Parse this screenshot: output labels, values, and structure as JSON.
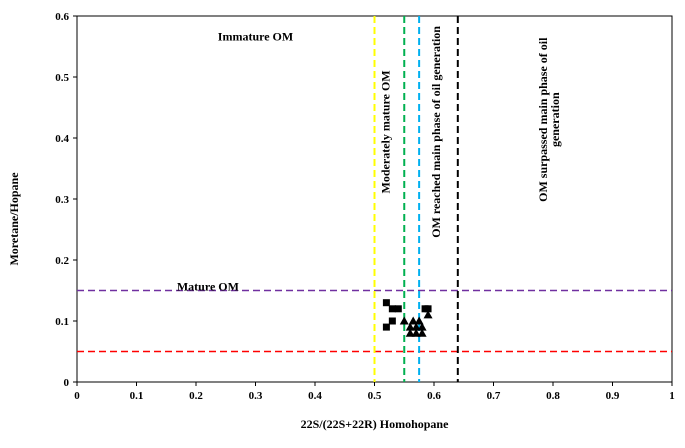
{
  "chart_data": {
    "type": "scatter",
    "title": "",
    "xlabel": "22S/(22S+22R) Homohopane",
    "ylabel": "Moretane/Hopane",
    "xlim": [
      0,
      1
    ],
    "ylim": [
      0,
      0.6
    ],
    "xticks": [
      "0",
      "0.1",
      "0.2",
      "0.3",
      "0.4",
      "0.5",
      "0.6",
      "0.7",
      "0.8",
      "0.9",
      "1"
    ],
    "yticks": [
      "0",
      "0.1",
      "0.2",
      "0.3",
      "0.4",
      "0.5",
      "0.6"
    ],
    "grid": false,
    "series": [
      {
        "marker": "square",
        "color": "#000000",
        "points": [
          [
            0.52,
            0.13
          ],
          [
            0.53,
            0.12
          ],
          [
            0.54,
            0.12
          ],
          [
            0.53,
            0.1
          ],
          [
            0.52,
            0.09
          ],
          [
            0.59,
            0.12
          ],
          [
            0.585,
            0.12
          ]
        ]
      },
      {
        "marker": "triangle",
        "color": "#000000",
        "points": [
          [
            0.55,
            0.1
          ],
          [
            0.56,
            0.09
          ],
          [
            0.565,
            0.1
          ],
          [
            0.57,
            0.09
          ],
          [
            0.575,
            0.1
          ],
          [
            0.58,
            0.09
          ],
          [
            0.56,
            0.08
          ],
          [
            0.57,
            0.08
          ],
          [
            0.58,
            0.08
          ],
          [
            0.59,
            0.11
          ]
        ]
      }
    ],
    "reference_lines": [
      {
        "orientation": "horizontal",
        "value": 0.15,
        "color": "#7030a0",
        "style": "dashed"
      },
      {
        "orientation": "horizontal",
        "value": 0.05,
        "color": "#ff0000",
        "style": "dashed"
      },
      {
        "orientation": "vertical",
        "value": 0.5,
        "color": "#ffff00",
        "style": "dashed"
      },
      {
        "orientation": "vertical",
        "value": 0.55,
        "color": "#00b050",
        "style": "dashed"
      },
      {
        "orientation": "vertical",
        "value": 0.575,
        "color": "#00b0f0",
        "style": "dashed"
      },
      {
        "orientation": "vertical",
        "value": 0.64,
        "color": "#000000",
        "style": "dashed"
      }
    ],
    "annotations": [
      {
        "text": "Immature OM",
        "x": 0.3,
        "y": 0.56,
        "rotate": false
      },
      {
        "text": "Mature OM",
        "x": 0.22,
        "y": 0.15,
        "rotate": false
      },
      {
        "text": "Moderately mature OM",
        "x": 0.525,
        "y": 0.41,
        "rotate": true
      },
      {
        "text": "OM reached main phase of oil generation",
        "x": 0.61,
        "y": 0.41,
        "rotate": true
      },
      {
        "text": "OM surpassed main phase of oil",
        "x": 0.79,
        "y": 0.43,
        "rotate": true
      },
      {
        "text": "generation",
        "x": 0.81,
        "y": 0.43,
        "rotate": true
      }
    ]
  }
}
